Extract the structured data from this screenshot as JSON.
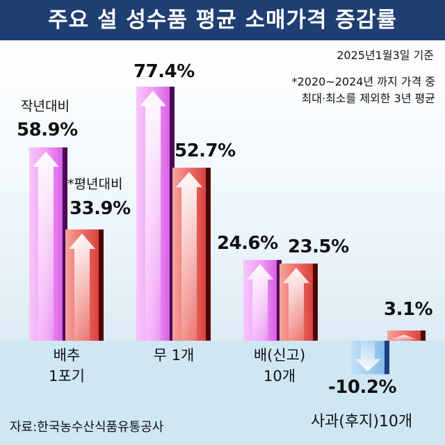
{
  "title": "주요 설 성수품 평균 소매가격 증감률",
  "date_note": "2025년1월3일 기준",
  "footnote_lines": [
    "*2020~2024년 까지 가격 중",
    "최대·최소를 제외한 3년 평균"
  ],
  "source": "자료:한국농수산식품유통공사",
  "series_labels": {
    "yoy": "작년대비",
    "avg": "*평년대비"
  },
  "colors": {
    "yoy": "#e67ff0",
    "avg": "#e8554f",
    "decline": "#8fc2ee",
    "title_bg": "#1f3f73"
  },
  "chart_data": {
    "type": "bar",
    "title": "주요 설 성수품 평균 소매가격 증감률",
    "categories": [
      "배추 1포기",
      "무 1개",
      "배(신고) 10개",
      "사과(후지)10개"
    ],
    "category_lines": [
      [
        "배추",
        "1포기"
      ],
      [
        "무 1개"
      ],
      [
        "배(신고)",
        "10개"
      ],
      [
        "사과(후지)10개"
      ]
    ],
    "series": [
      {
        "name": "작년대비",
        "values": [
          58.9,
          77.4,
          24.6,
          -10.2
        ],
        "labels": [
          "58.9%",
          "77.4%",
          "24.6%",
          "-10.2%"
        ]
      },
      {
        "name": "*평년대비",
        "values": [
          33.9,
          52.7,
          23.5,
          3.1
        ],
        "labels": [
          "33.9%",
          "52.7%",
          "23.5%",
          "3.1%"
        ]
      }
    ],
    "unit": "%"
  }
}
